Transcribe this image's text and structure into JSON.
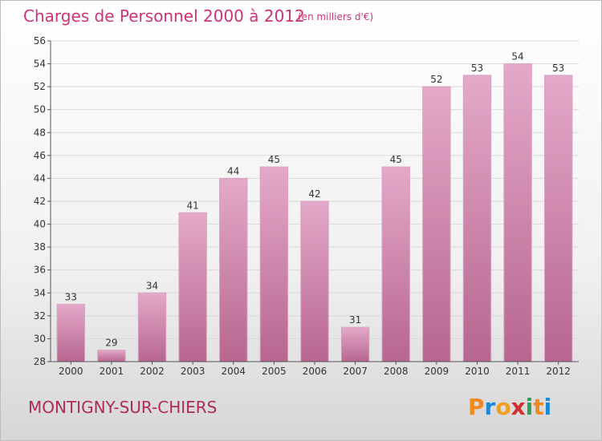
{
  "chart_data": {
    "type": "bar",
    "title": "Charges de Personnel 2000 à 2012",
    "subtitle": "(en milliers d'€)",
    "categories": [
      "2000",
      "2001",
      "2002",
      "2003",
      "2004",
      "2005",
      "2006",
      "2007",
      "2008",
      "2009",
      "2010",
      "2011",
      "2012"
    ],
    "values": [
      33,
      29,
      34,
      41,
      44,
      45,
      42,
      31,
      45,
      52,
      53,
      54,
      53
    ],
    "ylim": [
      28,
      56
    ],
    "yticks": [
      28,
      30,
      32,
      34,
      36,
      38,
      40,
      42,
      44,
      46,
      48,
      50,
      52,
      54,
      56
    ],
    "grid": true,
    "xlabel": "",
    "ylabel": "",
    "bar_color": "#c8709e"
  },
  "town": "MONTIGNY-SUR-CHIERS",
  "logo": {
    "letters": [
      "P",
      "r",
      "o",
      "x",
      "i",
      "t",
      "i"
    ],
    "colors": [
      "#f08a1c",
      "#1e88d8",
      "#f0a020",
      "#d03030",
      "#30a050",
      "#f08a1c",
      "#1e88d8"
    ]
  }
}
